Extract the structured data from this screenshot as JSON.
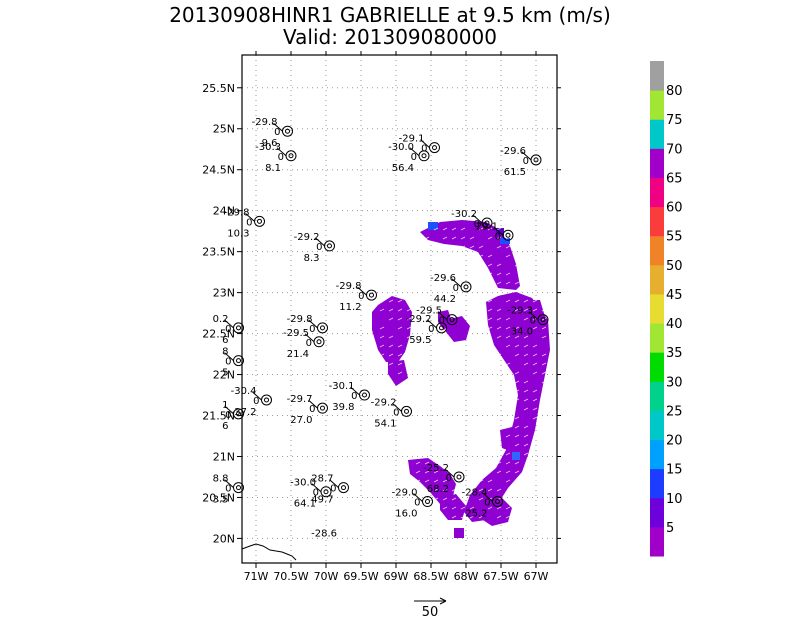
{
  "chart_data": {
    "type": "scatter",
    "title": "20130908HINR1 GABRIELLE at 9.5 km (m/s)",
    "subtitle": "Valid: 201309080000",
    "xlim": [
      -71.2,
      -66.7
    ],
    "ylim": [
      19.7,
      25.9
    ],
    "x_ticks": [
      {
        "value": -71.0,
        "label": "71W"
      },
      {
        "value": -70.5,
        "label": "70.5W"
      },
      {
        "value": -70.0,
        "label": "70W"
      },
      {
        "value": -69.5,
        "label": "69.5W"
      },
      {
        "value": -69.0,
        "label": "69W"
      },
      {
        "value": -68.5,
        "label": "68.5W"
      },
      {
        "value": -68.0,
        "label": "68W"
      },
      {
        "value": -67.5,
        "label": "67.5W"
      },
      {
        "value": -67.0,
        "label": "67W"
      }
    ],
    "y_ticks": [
      {
        "value": 20.0,
        "label": "20N"
      },
      {
        "value": 20.5,
        "label": "20.5N"
      },
      {
        "value": 21.0,
        "label": "21N"
      },
      {
        "value": 21.5,
        "label": "21.5N"
      },
      {
        "value": 22.0,
        "label": "22N"
      },
      {
        "value": 22.5,
        "label": "22.5N"
      },
      {
        "value": 23.0,
        "label": "23N"
      },
      {
        "value": 23.5,
        "label": "23.5N"
      },
      {
        "value": 24.0,
        "label": "24N"
      },
      {
        "value": 24.5,
        "label": "24.5N"
      },
      {
        "value": 25.0,
        "label": "25N"
      },
      {
        "value": 25.5,
        "label": "25.5N"
      }
    ],
    "grid": true,
    "colorbar": {
      "labels": [
        "5",
        "10",
        "15",
        "20",
        "25",
        "30",
        "35",
        "40",
        "45",
        "50",
        "55",
        "60",
        "65",
        "70",
        "75",
        "80"
      ],
      "colors": [
        "#a000c8",
        "#6e00dc",
        "#1e3cff",
        "#00a0ff",
        "#00c8c8",
        "#00d28c",
        "#00dc00",
        "#a0e632",
        "#e6dc32",
        "#e6af2d",
        "#f08228",
        "#fa3c3c",
        "#f00082",
        "#a000c8",
        "#00c8c8",
        "#a0e632",
        "#a0a0a0"
      ]
    },
    "reference_vector": {
      "label": "50"
    },
    "stations": [
      {
        "lon": -70.55,
        "lat": 24.97,
        "top": "-29.8",
        "mid": "0",
        "bot": "9.6"
      },
      {
        "lon": -70.5,
        "lat": 24.67,
        "top": "-30.3",
        "mid": "0",
        "bot": "8.1"
      },
      {
        "lon": -70.95,
        "lat": 23.87,
        "top": "-29.8",
        "mid": "0",
        "bot": "10.3"
      },
      {
        "lon": -69.95,
        "lat": 23.57,
        "top": "-29.2",
        "mid": "0",
        "bot": "8.3"
      },
      {
        "lon": -69.35,
        "lat": 22.97,
        "top": "-29.8",
        "mid": "0",
        "bot": "11.2"
      },
      {
        "lon": -70.05,
        "lat": 22.57,
        "top": "-29.8",
        "mid": "0",
        "bot": ""
      },
      {
        "lon": -70.1,
        "lat": 22.4,
        "top": "-29.5",
        "mid": "0",
        "bot": "21.4"
      },
      {
        "lon": -71.25,
        "lat": 22.57,
        "top": "0.2",
        "mid": "0",
        "bot": "6"
      },
      {
        "lon": -71.25,
        "lat": 22.17,
        "top": "8",
        "mid": "0",
        "bot": "5"
      },
      {
        "lon": -70.85,
        "lat": 21.69,
        "top": "-30.4",
        "mid": "0",
        "bot": "37.2"
      },
      {
        "lon": -71.25,
        "lat": 21.52,
        "top": "1",
        "mid": "0",
        "bot": "6"
      },
      {
        "lon": -70.05,
        "lat": 21.59,
        "top": "-29.7",
        "mid": "0",
        "bot": "27.0"
      },
      {
        "lon": -69.45,
        "lat": 21.75,
        "top": "-30.1",
        "mid": "0",
        "bot": "39.8"
      },
      {
        "lon": -68.85,
        "lat": 21.55,
        "top": "-29.2",
        "mid": "0",
        "bot": "54.1"
      },
      {
        "lon": -68.35,
        "lat": 22.57,
        "top": "-29.2",
        "mid": "0",
        "bot": "59.5"
      },
      {
        "lon": -68.2,
        "lat": 22.67,
        "top": "-29.5",
        "mid": "0",
        "bot": ""
      },
      {
        "lon": -68.0,
        "lat": 23.07,
        "top": "-29.6",
        "mid": "0",
        "bot": "44.2"
      },
      {
        "lon": -66.9,
        "lat": 22.67,
        "top": "-29.3",
        "mid": "0",
        "bot": "34.0"
      },
      {
        "lon": -68.45,
        "lat": 24.77,
        "top": "-29.1",
        "mid": "0",
        "bot": ""
      },
      {
        "lon": -68.6,
        "lat": 24.67,
        "top": "-30.0",
        "mid": "0",
        "bot": "56.4"
      },
      {
        "lon": -67.0,
        "lat": 24.62,
        "top": "-29.6",
        "mid": "0",
        "bot": "61.5"
      },
      {
        "lon": -67.7,
        "lat": 23.85,
        "top": "-30.2",
        "mid": "0",
        "bot": ""
      },
      {
        "lon": -67.4,
        "lat": 23.7,
        "top": "29.1",
        "mid": "0",
        "bot": ""
      },
      {
        "lon": -71.25,
        "lat": 20.62,
        "top": "8.8",
        "mid": "0",
        "bot": "3.5"
      },
      {
        "lon": -70.0,
        "lat": 20.57,
        "top": "-30.0",
        "mid": "0",
        "bot": "64.1"
      },
      {
        "lon": -69.75,
        "lat": 20.62,
        "top": "28.7",
        "mid": "0",
        "bot": "49.7"
      },
      {
        "lon": -68.55,
        "lat": 20.45,
        "top": "-29.0",
        "mid": "0",
        "bot": "16.0"
      },
      {
        "lon": -68.1,
        "lat": 20.75,
        "top": "-25.2",
        "mid": "0",
        "bot": "68.2"
      },
      {
        "lon": -67.55,
        "lat": 20.45,
        "top": "-28.4",
        "mid": "0",
        "bot": "25.2"
      },
      {
        "lon": -69.7,
        "lat": 19.95,
        "top": "-28.6",
        "mid": "",
        "bot": ""
      }
    ]
  }
}
